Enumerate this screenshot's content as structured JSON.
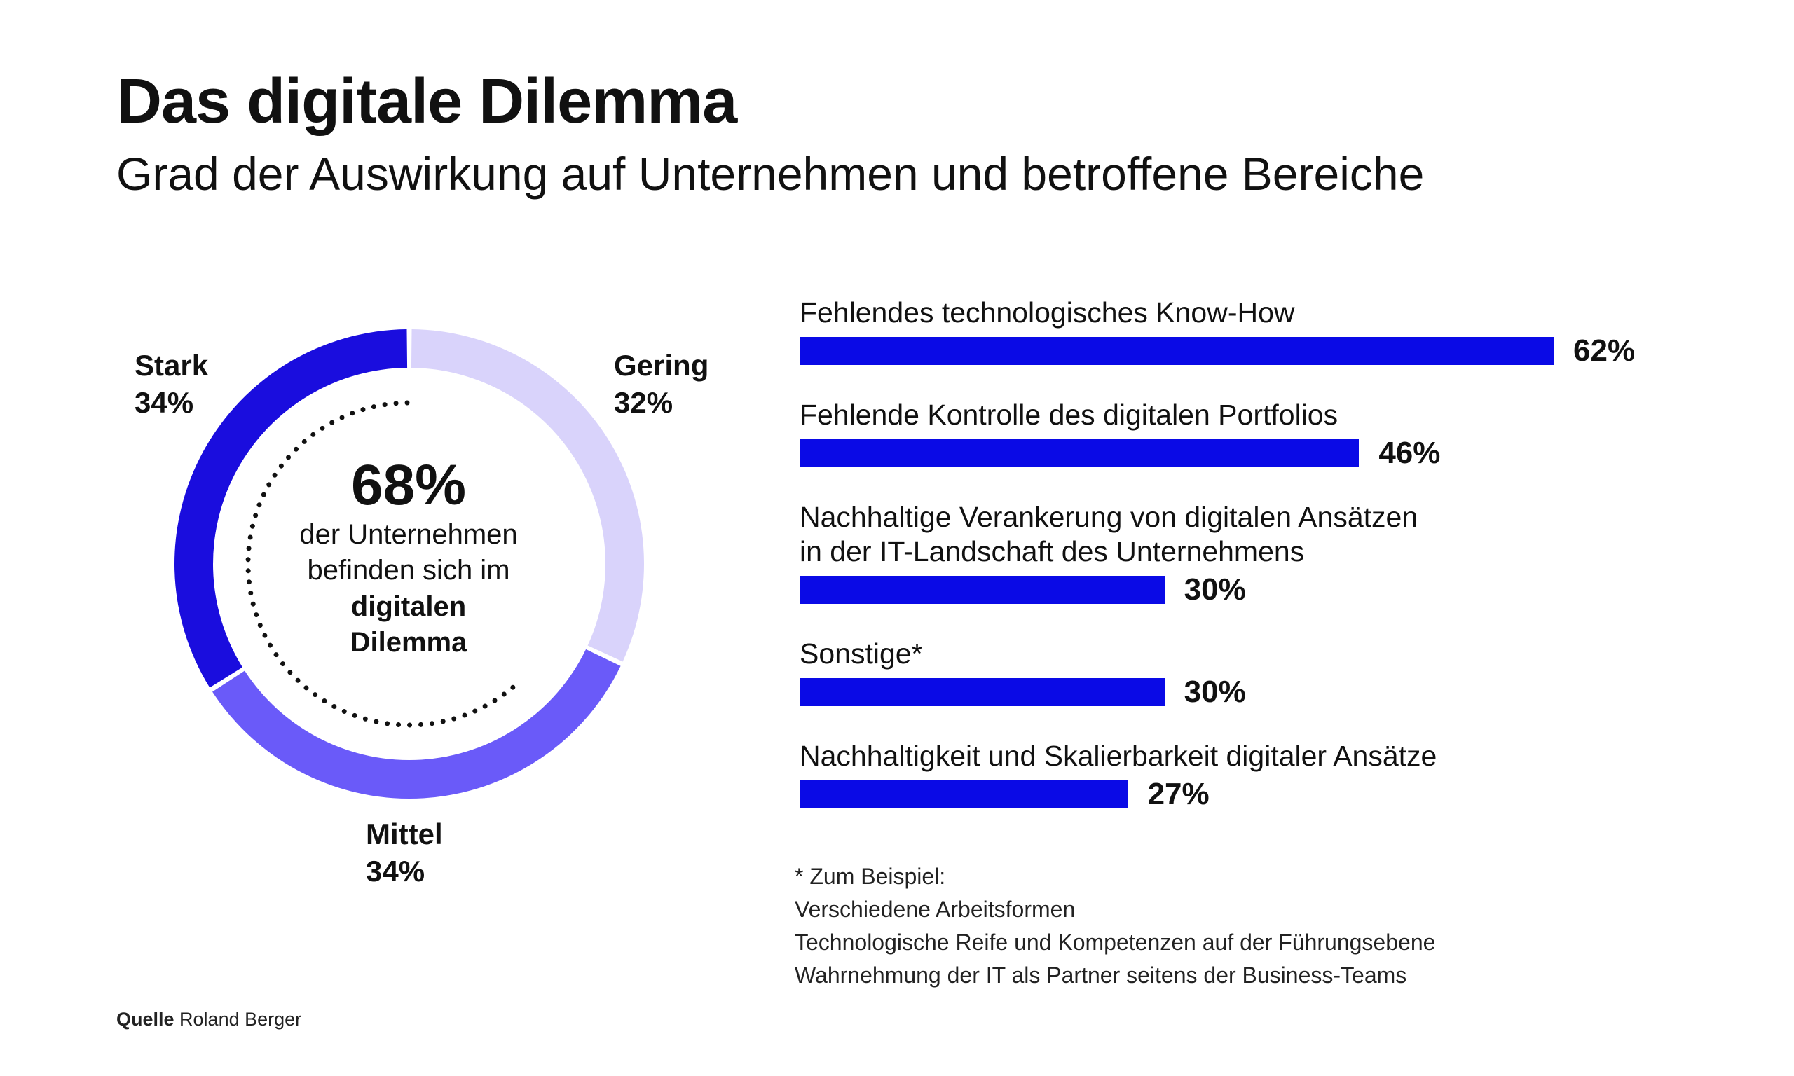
{
  "header": {
    "title": "Das digitale Dilemma",
    "subtitle": "Grad der Auswirkung auf Unternehmen und betroffene Bereiche"
  },
  "colors": {
    "stark": "#1a0dde",
    "mittel": "#6a5af9",
    "gering": "#d9d3fb",
    "bar": "#0a0ae6"
  },
  "center": {
    "big": "68%",
    "line1": "der Unternehmen",
    "line2": "befinden sich im",
    "line3": "digitalen",
    "line4": "Dilemma"
  },
  "footnote": {
    "line0": "* Zum Beispiel:",
    "line1": "Verschiedene Arbeitsformen",
    "line2": "Technologische Reife und Kompetenzen auf der Führungsebene",
    "line3": "Wahrnehmung der IT als Partner seitens der Business-Teams"
  },
  "source": {
    "key": "Quelle",
    "value": "Roland Berger"
  },
  "chart_data": [
    {
      "type": "pie",
      "categories": [
        "Stark",
        "Mittel",
        "Gering"
      ],
      "values": [
        34,
        34,
        32
      ],
      "value_labels": [
        "34%",
        "34%",
        "32%"
      ],
      "colors": [
        "#1a0dde",
        "#6a5af9",
        "#d9d3fb"
      ],
      "style": "donut"
    },
    {
      "type": "bar",
      "orientation": "horizontal",
      "categories": [
        "Fehlendes technologisches Know-How",
        "Fehlende Kontrolle des digitalen Portfolios",
        "Nachhaltige Verankerung von digitalen Ansätzen in der IT-Landschaft des Unternehmens",
        "Sonstige*",
        "Nachhaltigkeit und Skalierbarkeit digitaler Ansätze"
      ],
      "label_lines": [
        [
          "Fehlendes technologisches Know-How"
        ],
        [
          "Fehlende Kontrolle des digitalen Portfolios"
        ],
        [
          "Nachhaltige Verankerung von digitalen Ansätzen",
          "in der IT-Landschaft des Unternehmens"
        ],
        [
          "Sonstige*"
        ],
        [
          "Nachhaltigkeit und Skalierbarkeit digitaler Ansätze"
        ]
      ],
      "values": [
        62,
        46,
        30,
        30,
        27
      ],
      "value_labels": [
        "62%",
        "46%",
        "30%",
        "30%",
        "27%"
      ],
      "xlim": [
        0,
        100
      ]
    }
  ]
}
